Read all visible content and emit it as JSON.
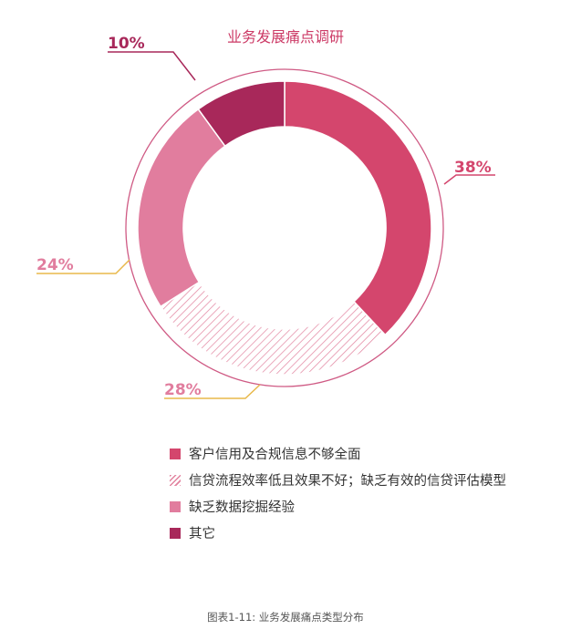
{
  "title": "业务发展痛点调研",
  "caption": "图表1-11: 业务发展痛点类型分布",
  "chart_data": {
    "type": "pie",
    "title": "业务发展痛点调研",
    "series": [
      {
        "name": "客户信用及合规信息不够全面",
        "value": 38,
        "label": "38%",
        "color": "#d4466d",
        "pattern": "solid"
      },
      {
        "name": "信贷流程效率低且效果不好；缺乏有效的信贷评估模型",
        "value": 28,
        "label": "28%",
        "color": "#e2839f",
        "pattern": "hatched"
      },
      {
        "name": "缺乏数据挖掘经验",
        "value": 24,
        "label": "24%",
        "color": "#e17d9e",
        "pattern": "solid"
      },
      {
        "name": "其它",
        "value": 10,
        "label": "10%",
        "color": "#a8285a",
        "pattern": "solid"
      }
    ],
    "label_colors": {
      "38%": "#d4466d",
      "28%": "#e17d9e",
      "24%": "#e17d9e",
      "10%": "#a8285a"
    },
    "leader_line_colors": [
      "#d4466d",
      "#e8b84a",
      "#e8b84a",
      "#a8285a"
    ],
    "legend_position": "bottom-left"
  }
}
